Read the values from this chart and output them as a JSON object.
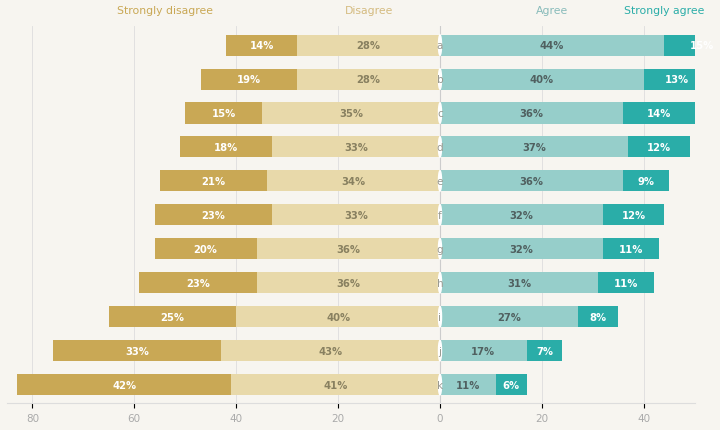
{
  "categories": [
    "a",
    "b",
    "c",
    "d",
    "e",
    "f",
    "g",
    "h",
    "i",
    "j",
    "k"
  ],
  "strongly_disagree": [
    14,
    19,
    15,
    18,
    21,
    23,
    20,
    23,
    25,
    33,
    42
  ],
  "disagree": [
    28,
    28,
    35,
    33,
    34,
    33,
    36,
    36,
    40,
    43,
    41
  ],
  "agree": [
    44,
    40,
    36,
    37,
    36,
    32,
    32,
    31,
    27,
    17,
    11
  ],
  "strongly_agree": [
    15,
    13,
    14,
    12,
    9,
    12,
    11,
    11,
    8,
    7,
    6
  ],
  "color_strongly_disagree": "#C9A855",
  "color_disagree": "#E8D9AA",
  "color_agree": "#96CECA",
  "color_strongly_agree": "#2AADA8",
  "background_color": "#F7F5F0",
  "title_sd": "Strongly disagree",
  "title_d": "Disagree",
  "title_a": "Agree",
  "title_sa": "Strongly agree",
  "color_header_sd": "#C9A855",
  "color_header_d": "#D4BB80",
  "color_header_a": "#88BBBA",
  "color_header_sa": "#2AADA8",
  "xlim_left": -85,
  "xlim_right": 50,
  "bar_height": 0.62,
  "label_color_sd": "#FFFFFF",
  "label_color_d": "#888060",
  "label_color_ag": "#506060",
  "label_color_sa": "#FFFFFF",
  "cat_label_color": "#999990",
  "tick_color": "#AAAAAA",
  "grid_color": "#DDDDDD",
  "center_line_color": "#CCCCCC"
}
